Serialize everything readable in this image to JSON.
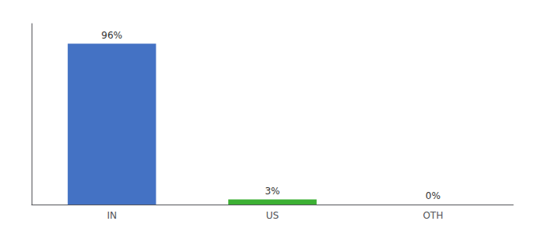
{
  "chart_data": {
    "type": "bar",
    "categories": [
      "IN",
      "US",
      "OTH"
    ],
    "values": [
      96,
      3,
      0
    ],
    "value_labels": [
      "96%",
      "3%",
      "0%"
    ],
    "colors": [
      "#4472c4",
      "#3cb034",
      "#4472c4"
    ],
    "ylim": [
      0,
      108
    ],
    "grid": false,
    "data_labels": true,
    "tick_labels": "x"
  }
}
